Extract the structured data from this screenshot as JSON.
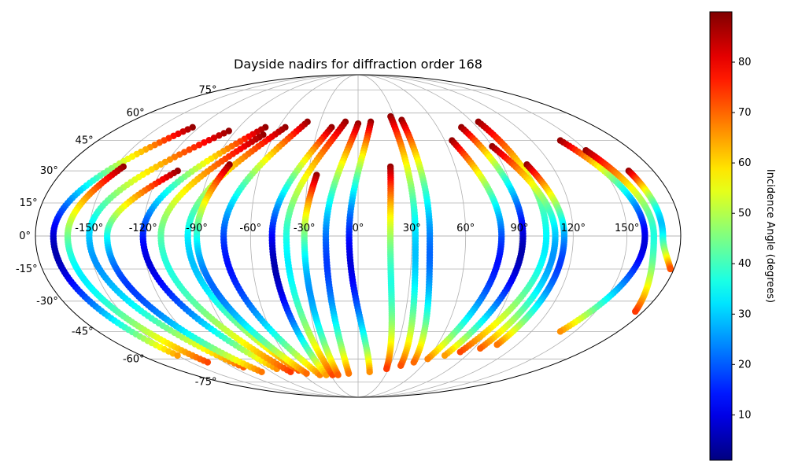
{
  "chart_data": {
    "type": "scatter",
    "projection": "mollweide",
    "title": "Dayside nadirs for diffraction order 168",
    "xlabel": "",
    "ylabel": "",
    "lon_ticks": [
      "-150°",
      "-120°",
      "-90°",
      "-60°",
      "-30°",
      "0°",
      "30°",
      "60°",
      "90°",
      "120°",
      "150°"
    ],
    "lon_values": [
      -150,
      -120,
      -90,
      -60,
      -30,
      0,
      30,
      60,
      90,
      120,
      150
    ],
    "lat_ticks": [
      "75°",
      "60°",
      "45°",
      "30°",
      "15°",
      "0°",
      "-15°",
      "-30°",
      "-45°",
      "-60°",
      "-75°"
    ],
    "lat_values": [
      75,
      60,
      45,
      30,
      15,
      0,
      -15,
      -30,
      -45,
      -60,
      -75
    ],
    "grid": true,
    "colorbar": {
      "label": "Incidence Angle (degrees)",
      "colormap": "jet",
      "range": [
        1,
        90
      ],
      "ticks": [
        "10",
        "20",
        "30",
        "40",
        "50",
        "60",
        "70",
        "80"
      ],
      "tick_values": [
        10,
        20,
        30,
        40,
        50,
        60,
        70,
        80
      ]
    },
    "tracks": [
      {
        "lon_top": -125,
        "lat_top": 52,
        "lon_eq": -170,
        "lat_end": -58,
        "lon_end": -150
      },
      {
        "lon_top": -145,
        "lat_top": 32,
        "lon_eq": -162,
        "lat_end": -62,
        "lon_end": -135
      },
      {
        "lon_top": -95,
        "lat_top": 50,
        "lon_eq": -150,
        "lat_end": -65,
        "lon_end": -110
      },
      {
        "lon_top": -110,
        "lat_top": 30,
        "lon_eq": -140,
        "lat_end": -68,
        "lon_end": -100
      },
      {
        "lon_top": -70,
        "lat_top": 52,
        "lon_eq": -120,
        "lat_end": -66,
        "lon_end": -80
      },
      {
        "lon_top": -68,
        "lat_top": 48,
        "lon_eq": -110,
        "lat_end": -68,
        "lon_end": -70
      },
      {
        "lon_top": -55,
        "lat_top": 52,
        "lon_eq": -95,
        "lat_end": -67,
        "lon_end": -60
      },
      {
        "lon_top": -80,
        "lat_top": 33,
        "lon_eq": -90,
        "lat_end": -69,
        "lon_end": -55
      },
      {
        "lon_top": -40,
        "lat_top": 55,
        "lon_eq": -75,
        "lat_end": -70,
        "lon_end": -42
      },
      {
        "lon_top": -20,
        "lat_top": 52,
        "lon_eq": -48,
        "lat_end": -70,
        "lon_end": -35
      },
      {
        "lon_top": -10,
        "lat_top": 55,
        "lon_eq": -40,
        "lat_end": -70,
        "lon_end": -28
      },
      {
        "lon_top": -25,
        "lat_top": 28,
        "lon_eq": -30,
        "lat_end": -70,
        "lon_end": -22
      },
      {
        "lon_top": 0,
        "lat_top": 54,
        "lon_eq": -18,
        "lat_end": -69,
        "lon_end": -10
      },
      {
        "lon_top": 10,
        "lat_top": 55,
        "lon_eq": -5,
        "lat_end": -68,
        "lon_end": 12
      },
      {
        "lon_top": 20,
        "lat_top": 32,
        "lon_eq": 18,
        "lat_end": -66,
        "lon_end": 28
      },
      {
        "lon_top": 27,
        "lat_top": 58,
        "lon_eq": 32,
        "lat_end": -64,
        "lon_end": 40
      },
      {
        "lon_top": 35,
        "lat_top": 56,
        "lon_eq": 40,
        "lat_end": -62,
        "lon_end": 50
      },
      {
        "lon_top": 65,
        "lat_top": 45,
        "lon_eq": 80,
        "lat_end": -60,
        "lon_end": 60
      },
      {
        "lon_top": 78,
        "lat_top": 52,
        "lon_eq": 92,
        "lat_end": -58,
        "lon_end": 72
      },
      {
        "lon_top": 95,
        "lat_top": 55,
        "lon_eq": 105,
        "lat_end": -56,
        "lon_end": 82
      },
      {
        "lon_top": 90,
        "lat_top": 42,
        "lon_eq": 110,
        "lat_end": -54,
        "lon_end": 95
      },
      {
        "lon_top": 105,
        "lat_top": 33,
        "lon_eq": 115,
        "lat_end": -52,
        "lon_end": 105
      },
      {
        "lon_top": 140,
        "lat_top": 45,
        "lon_eq": 160,
        "lat_end": -45,
        "lon_end": 140
      },
      {
        "lon_top": 150,
        "lat_top": 40,
        "lon_eq": 165,
        "lat_end": -35,
        "lon_end": 175
      },
      {
        "lon_top": 165,
        "lat_top": 30,
        "lon_eq": 170,
        "lat_end": -15,
        "lon_end": 178
      }
    ]
  }
}
